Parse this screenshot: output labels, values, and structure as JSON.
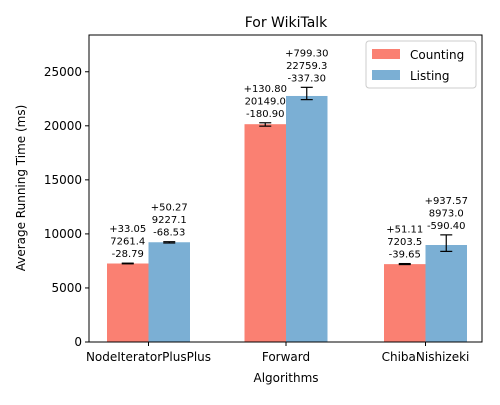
{
  "chart_data": {
    "type": "bar",
    "title": "For WikiTalk",
    "xlabel": "Algorithms",
    "ylabel": "Average Running Time (ms)",
    "ylim": [
      0,
      28400
    ],
    "yticks": [
      0,
      5000,
      10000,
      15000,
      20000,
      25000
    ],
    "ytick_labels": [
      "0",
      "5000",
      "10000",
      "15000",
      "20000",
      "25000"
    ],
    "grid": false,
    "legend_position": "top-right",
    "categories": [
      "NodeIteratorPlusPlus",
      "Forward",
      "ChibaNishizeki"
    ],
    "series": [
      {
        "name": "Counting",
        "color": "#fa8072",
        "values": [
          7261.4,
          20149.0,
          7203.5
        ],
        "err_plus": [
          33.05,
          130.8,
          51.11
        ],
        "err_minus": [
          28.79,
          180.9,
          39.65
        ],
        "labels": [
          [
            "+33.05",
            "7261.4",
            "-28.79"
          ],
          [
            "+130.80",
            "20149.0",
            "-180.90"
          ],
          [
            "+51.11",
            "7203.5",
            "-39.65"
          ]
        ]
      },
      {
        "name": "Listing",
        "color": "#7bafd4",
        "values": [
          9227.1,
          22759.3,
          8973.0
        ],
        "err_plus": [
          50.27,
          799.3,
          937.57
        ],
        "err_minus": [
          68.53,
          337.3,
          590.4
        ],
        "labels": [
          [
            "+50.27",
            "9227.1",
            "-68.53"
          ],
          [
            "+799.30",
            "22759.3",
            "-337.30"
          ],
          [
            "+937.57",
            "8973.0",
            "-590.40"
          ]
        ]
      }
    ]
  }
}
